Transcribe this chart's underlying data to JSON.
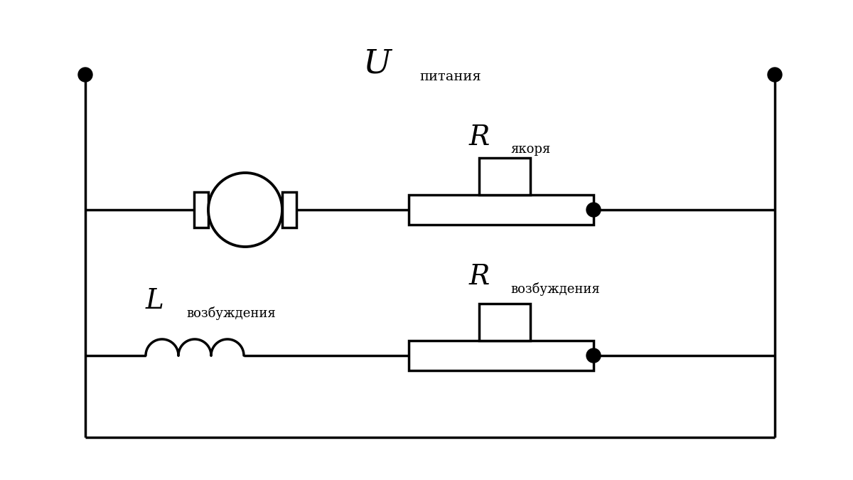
{
  "title": "U",
  "title_sub": "питания",
  "label_R_anchor": "R",
  "label_R_anchor_sub": "якоря",
  "label_L": "L",
  "label_L_sub": "возбуждения",
  "label_R_excite": "R",
  "label_R_excite_sub": "возбуждения",
  "bg_color": "#ffffff",
  "line_color": "#000000",
  "line_width": 2.5,
  "fig_width": 12.0,
  "fig_height": 6.75
}
